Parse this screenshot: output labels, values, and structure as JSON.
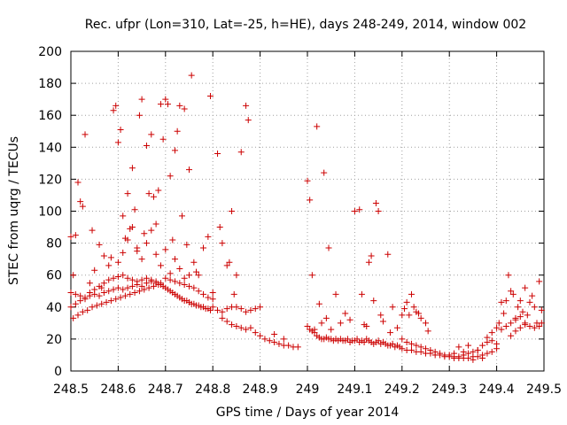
{
  "chart_data": {
    "type": "scatter",
    "title": "Rec. ufpr (Lon=310, Lat=-25, h=HE), days 248-249, 2014, window 002",
    "xlabel": "GPS time / Days of year 2014",
    "ylabel": "STEC from uqrg / TECUs",
    "xlim": [
      248.5,
      249.5
    ],
    "ylim": [
      0,
      200
    ],
    "xticks": [
      248.5,
      248.6,
      248.7,
      248.8,
      248.9,
      249,
      249.1,
      249.2,
      249.3,
      249.4,
      249.5
    ],
    "xtick_labels": [
      "248.5",
      "248.6",
      "248.7",
      "248.8",
      "248.9",
      "249",
      "249.1",
      "249.2",
      "249.3",
      "249.4",
      "249.5"
    ],
    "yticks": [
      0,
      20,
      40,
      60,
      80,
      100,
      120,
      140,
      160,
      180,
      200
    ],
    "ytick_labels": [
      "0",
      "20",
      "40",
      "60",
      "80",
      "100",
      "120",
      "140",
      "160",
      "180",
      "200"
    ],
    "grid": true,
    "marker": "+",
    "color": "#cc0000",
    "points": [
      [
        248.5,
        49
      ],
      [
        248.505,
        33
      ],
      [
        248.51,
        48
      ],
      [
        248.515,
        35
      ],
      [
        248.52,
        47
      ],
      [
        248.525,
        37
      ],
      [
        248.53,
        45
      ],
      [
        248.535,
        38
      ],
      [
        248.54,
        47
      ],
      [
        248.545,
        40
      ],
      [
        248.55,
        48
      ],
      [
        248.555,
        41
      ],
      [
        248.56,
        47
      ],
      [
        248.565,
        42
      ],
      [
        248.57,
        49
      ],
      [
        248.575,
        43
      ],
      [
        248.58,
        50
      ],
      [
        248.585,
        44
      ],
      [
        248.59,
        51
      ],
      [
        248.595,
        45
      ],
      [
        248.6,
        52
      ],
      [
        248.605,
        46
      ],
      [
        248.61,
        51
      ],
      [
        248.615,
        47
      ],
      [
        248.62,
        52
      ],
      [
        248.625,
        48
      ],
      [
        248.63,
        53
      ],
      [
        248.635,
        49
      ],
      [
        248.64,
        54
      ],
      [
        248.645,
        50
      ],
      [
        248.65,
        53
      ],
      [
        248.655,
        51
      ],
      [
        248.66,
        55
      ],
      [
        248.665,
        52
      ],
      [
        248.67,
        56
      ],
      [
        248.675,
        53
      ],
      [
        248.68,
        55
      ],
      [
        248.685,
        54
      ],
      [
        248.69,
        54
      ],
      [
        248.695,
        53
      ],
      [
        248.7,
        52
      ],
      [
        248.705,
        51
      ],
      [
        248.71,
        50
      ],
      [
        248.715,
        49
      ],
      [
        248.72,
        48
      ],
      [
        248.725,
        47
      ],
      [
        248.73,
        46
      ],
      [
        248.735,
        45
      ],
      [
        248.74,
        44
      ],
      [
        248.745,
        44
      ],
      [
        248.75,
        43
      ],
      [
        248.755,
        42
      ],
      [
        248.76,
        42
      ],
      [
        248.765,
        41
      ],
      [
        248.77,
        41
      ],
      [
        248.775,
        40
      ],
      [
        248.78,
        40
      ],
      [
        248.785,
        39
      ],
      [
        248.79,
        39
      ],
      [
        248.795,
        38
      ],
      [
        248.5,
        40
      ],
      [
        248.51,
        42
      ],
      [
        248.52,
        44
      ],
      [
        248.53,
        46
      ],
      [
        248.54,
        49
      ],
      [
        248.55,
        51
      ],
      [
        248.56,
        53
      ],
      [
        248.57,
        55
      ],
      [
        248.58,
        57
      ],
      [
        248.59,
        58
      ],
      [
        248.6,
        59
      ],
      [
        248.61,
        60
      ],
      [
        248.62,
        58
      ],
      [
        248.63,
        57
      ],
      [
        248.64,
        56
      ],
      [
        248.65,
        57
      ],
      [
        248.66,
        58
      ],
      [
        248.67,
        57
      ],
      [
        248.68,
        56
      ],
      [
        248.69,
        55
      ],
      [
        248.7,
        58
      ],
      [
        248.71,
        57
      ],
      [
        248.72,
        56
      ],
      [
        248.73,
        55
      ],
      [
        248.74,
        54
      ],
      [
        248.75,
        53
      ],
      [
        248.76,
        52
      ],
      [
        248.77,
        50
      ],
      [
        248.78,
        48
      ],
      [
        248.79,
        46
      ],
      [
        248.8,
        45
      ],
      [
        248.5,
        84
      ],
      [
        248.505,
        60
      ],
      [
        248.51,
        85
      ],
      [
        248.515,
        118
      ],
      [
        248.52,
        106
      ],
      [
        248.525,
        103
      ],
      [
        248.53,
        148
      ],
      [
        248.54,
        55
      ],
      [
        248.545,
        88
      ],
      [
        248.55,
        63
      ],
      [
        248.56,
        79
      ],
      [
        248.565,
        52
      ],
      [
        248.57,
        72
      ],
      [
        248.58,
        66
      ],
      [
        248.585,
        71
      ],
      [
        248.59,
        163
      ],
      [
        248.595,
        166
      ],
      [
        248.6,
        143
      ],
      [
        248.605,
        151
      ],
      [
        248.61,
        97
      ],
      [
        248.615,
        83
      ],
      [
        248.62,
        111
      ],
      [
        248.625,
        89
      ],
      [
        248.63,
        127
      ],
      [
        248.635,
        101
      ],
      [
        248.64,
        75
      ],
      [
        248.645,
        160
      ],
      [
        248.65,
        170
      ],
      [
        248.655,
        86
      ],
      [
        248.66,
        141
      ],
      [
        248.665,
        111
      ],
      [
        248.67,
        148
      ],
      [
        248.675,
        109
      ],
      [
        248.68,
        92
      ],
      [
        248.685,
        113
      ],
      [
        248.69,
        167
      ],
      [
        248.695,
        145
      ],
      [
        248.7,
        170
      ],
      [
        248.705,
        167
      ],
      [
        248.71,
        122
      ],
      [
        248.715,
        82
      ],
      [
        248.72,
        138
      ],
      [
        248.725,
        150
      ],
      [
        248.73,
        166
      ],
      [
        248.735,
        97
      ],
      [
        248.74,
        164
      ],
      [
        248.745,
        79
      ],
      [
        248.75,
        126
      ],
      [
        248.755,
        185
      ],
      [
        248.76,
        68
      ],
      [
        248.765,
        62
      ],
      [
        248.77,
        60
      ],
      [
        248.78,
        77
      ],
      [
        248.79,
        84
      ],
      [
        248.795,
        172
      ],
      [
        248.8,
        49
      ],
      [
        248.81,
        136
      ],
      [
        248.815,
        90
      ],
      [
        248.82,
        80
      ],
      [
        248.83,
        66
      ],
      [
        248.835,
        68
      ],
      [
        248.84,
        100
      ],
      [
        248.845,
        48
      ],
      [
        248.85,
        60
      ],
      [
        248.86,
        137
      ],
      [
        248.87,
        166
      ],
      [
        248.875,
        157
      ],
      [
        248.6,
        68
      ],
      [
        248.61,
        74
      ],
      [
        248.62,
        82
      ],
      [
        248.63,
        90
      ],
      [
        248.64,
        77
      ],
      [
        248.65,
        70
      ],
      [
        248.66,
        80
      ],
      [
        248.67,
        88
      ],
      [
        248.68,
        73
      ],
      [
        248.69,
        66
      ],
      [
        248.7,
        76
      ],
      [
        248.71,
        61
      ],
      [
        248.72,
        70
      ],
      [
        248.73,
        64
      ],
      [
        248.74,
        58
      ],
      [
        248.75,
        60
      ],
      [
        248.8,
        40
      ],
      [
        248.81,
        38
      ],
      [
        248.82,
        37
      ],
      [
        248.83,
        39
      ],
      [
        248.84,
        40
      ],
      [
        248.85,
        40
      ],
      [
        248.86,
        39
      ],
      [
        248.87,
        37
      ],
      [
        248.88,
        38
      ],
      [
        248.89,
        39
      ],
      [
        248.9,
        40
      ],
      [
        248.82,
        33
      ],
      [
        248.83,
        31
      ],
      [
        248.84,
        29
      ],
      [
        248.85,
        28
      ],
      [
        248.86,
        27
      ],
      [
        248.87,
        26
      ],
      [
        248.88,
        27
      ],
      [
        248.89,
        24
      ],
      [
        248.9,
        22
      ],
      [
        248.91,
        20
      ],
      [
        248.92,
        19
      ],
      [
        248.93,
        18
      ],
      [
        248.94,
        17
      ],
      [
        248.95,
        16
      ],
      [
        248.96,
        16
      ],
      [
        248.97,
        15
      ],
      [
        248.98,
        15
      ],
      [
        248.93,
        23
      ],
      [
        248.95,
        20
      ],
      [
        249.0,
        28
      ],
      [
        249.005,
        26
      ],
      [
        249.01,
        25
      ],
      [
        249.015,
        24
      ],
      [
        249.02,
        22
      ],
      [
        249.025,
        21
      ],
      [
        249.03,
        20
      ],
      [
        249.035,
        20
      ],
      [
        249.04,
        21
      ],
      [
        249.045,
        20
      ],
      [
        249.05,
        20
      ],
      [
        249.055,
        19
      ],
      [
        249.06,
        20
      ],
      [
        249.065,
        19
      ],
      [
        249.07,
        20
      ],
      [
        249.075,
        19
      ],
      [
        249.08,
        19
      ],
      [
        249.085,
        20
      ],
      [
        249.09,
        18
      ],
      [
        249.095,
        19
      ],
      [
        249.1,
        19
      ],
      [
        249.105,
        20
      ],
      [
        249.11,
        18
      ],
      [
        249.115,
        19
      ],
      [
        249.12,
        18
      ],
      [
        249.125,
        20
      ],
      [
        249.13,
        19
      ],
      [
        249.135,
        18
      ],
      [
        249.14,
        17
      ],
      [
        249.145,
        18
      ],
      [
        249.15,
        19
      ],
      [
        249.155,
        17
      ],
      [
        249.16,
        18
      ],
      [
        249.165,
        17
      ],
      [
        249.17,
        16
      ],
      [
        249.175,
        16
      ],
      [
        249.18,
        17
      ],
      [
        249.185,
        15
      ],
      [
        249.19,
        16
      ],
      [
        249.195,
        15
      ],
      [
        249.0,
        119
      ],
      [
        249.005,
        107
      ],
      [
        249.01,
        60
      ],
      [
        249.015,
        26
      ],
      [
        249.02,
        153
      ],
      [
        249.025,
        42
      ],
      [
        249.03,
        30
      ],
      [
        249.035,
        124
      ],
      [
        249.04,
        33
      ],
      [
        249.045,
        77
      ],
      [
        249.05,
        26
      ],
      [
        249.06,
        48
      ],
      [
        249.07,
        30
      ],
      [
        249.08,
        36
      ],
      [
        249.09,
        32
      ],
      [
        249.1,
        100
      ],
      [
        249.11,
        101
      ],
      [
        249.115,
        48
      ],
      [
        249.12,
        29
      ],
      [
        249.125,
        28
      ],
      [
        249.13,
        68
      ],
      [
        249.135,
        72
      ],
      [
        249.14,
        44
      ],
      [
        249.145,
        105
      ],
      [
        249.15,
        100
      ],
      [
        249.155,
        35
      ],
      [
        249.16,
        31
      ],
      [
        249.17,
        73
      ],
      [
        249.175,
        24
      ],
      [
        249.18,
        40
      ],
      [
        249.19,
        27
      ],
      [
        249.2,
        35
      ],
      [
        249.205,
        39
      ],
      [
        249.21,
        43
      ],
      [
        249.215,
        35
      ],
      [
        249.22,
        48
      ],
      [
        249.225,
        40
      ],
      [
        249.23,
        37
      ],
      [
        249.235,
        36
      ],
      [
        249.24,
        33
      ],
      [
        249.25,
        30
      ],
      [
        249.255,
        25
      ],
      [
        249.2,
        14
      ],
      [
        249.21,
        13
      ],
      [
        249.22,
        13
      ],
      [
        249.23,
        12
      ],
      [
        249.24,
        12
      ],
      [
        249.25,
        11
      ],
      [
        249.26,
        11
      ],
      [
        249.27,
        10
      ],
      [
        249.28,
        10
      ],
      [
        249.29,
        9
      ],
      [
        249.3,
        9
      ],
      [
        249.31,
        8
      ],
      [
        249.32,
        8
      ],
      [
        249.33,
        8
      ],
      [
        249.34,
        8
      ],
      [
        249.35,
        9
      ],
      [
        249.36,
        9
      ],
      [
        249.37,
        10
      ],
      [
        249.38,
        11
      ],
      [
        249.39,
        12
      ],
      [
        249.4,
        14
      ],
      [
        249.2,
        20
      ],
      [
        249.21,
        18
      ],
      [
        249.22,
        17
      ],
      [
        249.23,
        16
      ],
      [
        249.24,
        15
      ],
      [
        249.25,
        14
      ],
      [
        249.26,
        13
      ],
      [
        249.27,
        12
      ],
      [
        249.28,
        11
      ],
      [
        249.29,
        10
      ],
      [
        249.3,
        10
      ],
      [
        249.31,
        9
      ],
      [
        249.32,
        9
      ],
      [
        249.33,
        10
      ],
      [
        249.34,
        11
      ],
      [
        249.35,
        12
      ],
      [
        249.36,
        13
      ],
      [
        249.37,
        16
      ],
      [
        249.38,
        18
      ],
      [
        249.39,
        19
      ],
      [
        249.4,
        17
      ],
      [
        249.31,
        11
      ],
      [
        249.33,
        12
      ],
      [
        249.35,
        7
      ],
      [
        249.37,
        8
      ],
      [
        249.32,
        15
      ],
      [
        249.34,
        16
      ],
      [
        249.36,
        13
      ],
      [
        249.38,
        21
      ],
      [
        249.39,
        24
      ],
      [
        249.4,
        27
      ],
      [
        249.405,
        30
      ],
      [
        249.41,
        43
      ],
      [
        249.415,
        36
      ],
      [
        249.42,
        44
      ],
      [
        249.425,
        60
      ],
      [
        249.43,
        50
      ],
      [
        249.435,
        48
      ],
      [
        249.44,
        33
      ],
      [
        249.445,
        40
      ],
      [
        249.45,
        44
      ],
      [
        249.455,
        37
      ],
      [
        249.46,
        52
      ],
      [
        249.465,
        35
      ],
      [
        249.47,
        43
      ],
      [
        249.475,
        47
      ],
      [
        249.48,
        40
      ],
      [
        249.485,
        30
      ],
      [
        249.49,
        56
      ],
      [
        249.495,
        38
      ],
      [
        249.41,
        26
      ],
      [
        249.42,
        28
      ],
      [
        249.43,
        30
      ],
      [
        249.44,
        32
      ],
      [
        249.45,
        34
      ],
      [
        249.46,
        30
      ],
      [
        249.47,
        28
      ],
      [
        249.48,
        27
      ],
      [
        249.49,
        28
      ],
      [
        249.495,
        30
      ],
      [
        249.43,
        22
      ],
      [
        249.44,
        25
      ],
      [
        249.45,
        27
      ],
      [
        249.46,
        29
      ]
    ]
  }
}
